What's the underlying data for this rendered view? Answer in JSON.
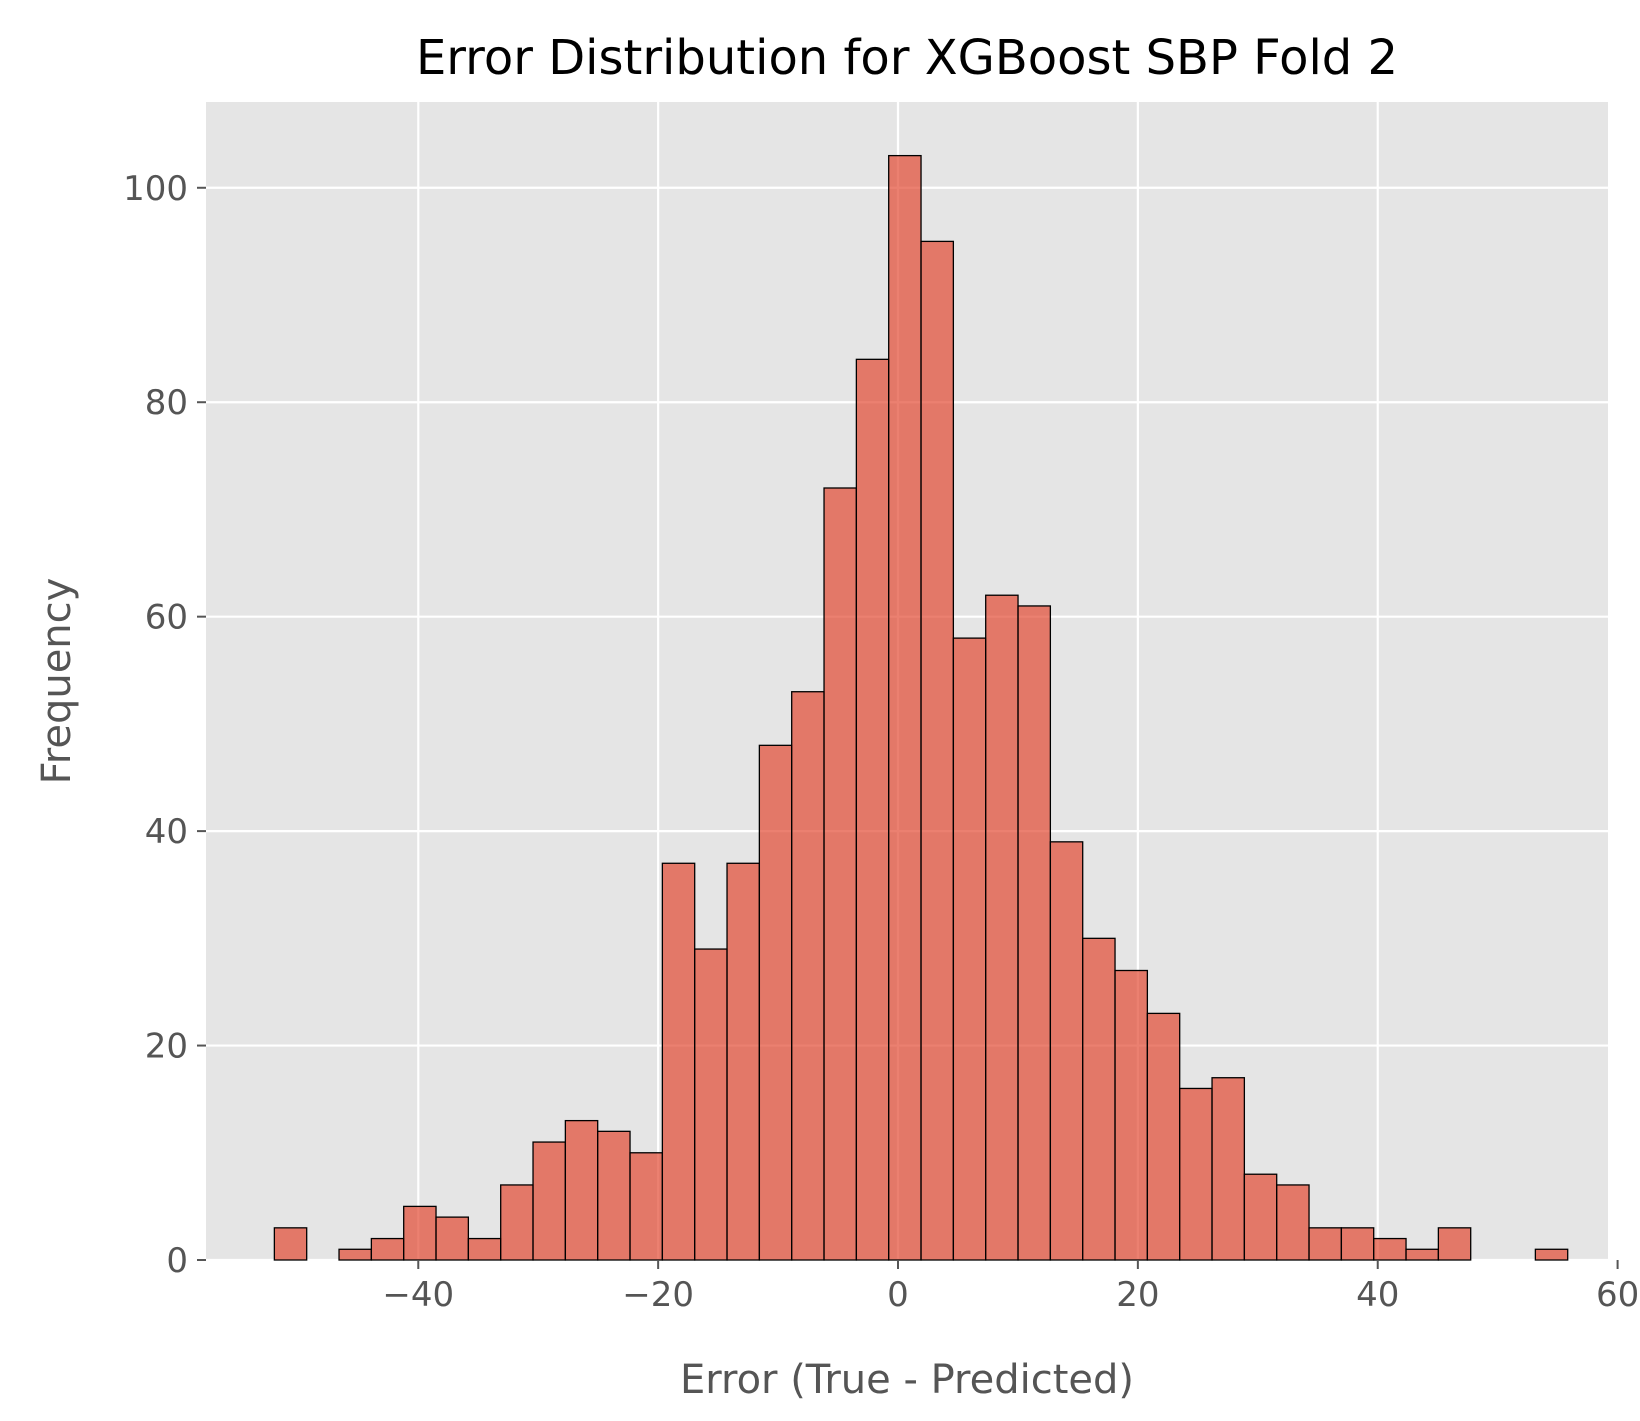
{
  "chart_data": {
    "type": "bar",
    "title": "Error Distribution for XGBoost SBP Fold 2",
    "xlabel": "Error (True - Predicted)",
    "ylabel": "Frequency",
    "xlim": [
      -57.7,
      59.2
    ],
    "ylim": [
      0,
      108
    ],
    "xticks": [
      -40,
      -20,
      0,
      20,
      40,
      60
    ],
    "xtick_labels": [
      "−40",
      "−20",
      "0",
      "20",
      "40",
      "60"
    ],
    "yticks": [
      0,
      20,
      40,
      60,
      80,
      100
    ],
    "ytick_labels": [
      "0",
      "20",
      "40",
      "60",
      "80",
      "100"
    ],
    "grid": true,
    "legend": false,
    "bin_start": -52.0,
    "bin_width": 2.696,
    "values": [
      3,
      0,
      1,
      2,
      5,
      4,
      2,
      7,
      11,
      13,
      12,
      10,
      37,
      29,
      37,
      48,
      53,
      72,
      84,
      103,
      95,
      58,
      62,
      61,
      39,
      30,
      27,
      23,
      16,
      17,
      8,
      7,
      3,
      3,
      2,
      1,
      3,
      0,
      0,
      1
    ],
    "colors": {
      "bar_fill": "#E24A33",
      "bar_edge": "#000000",
      "plot_bg": "#E5E5E5",
      "grid": "#FFFFFF",
      "tick_text": "#555555",
      "title_text": "#000000"
    }
  }
}
